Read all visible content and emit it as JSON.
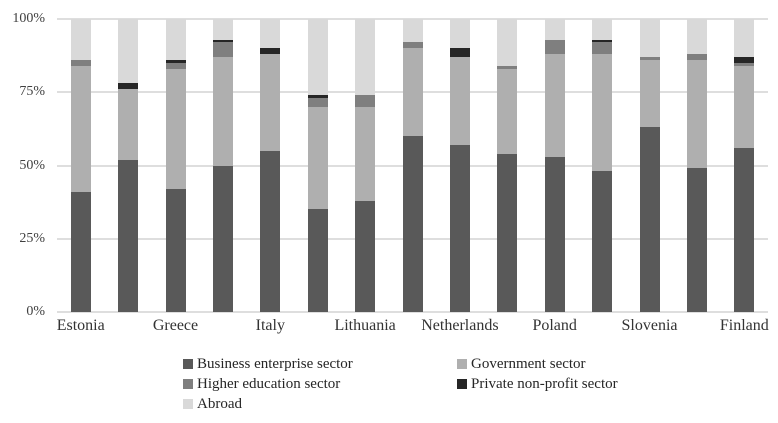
{
  "chart_data": {
    "type": "bar",
    "variant": "stacked-100-percent",
    "title": "",
    "xlabel": "",
    "ylabel": "",
    "grid": true,
    "legend_position": "bottom",
    "y_axis": {
      "min": 0,
      "max": 100,
      "tick_values": [
        0,
        25,
        50,
        75,
        100
      ],
      "tick_labels": [
        "0%",
        "25%",
        "50%",
        "75%",
        "100%"
      ]
    },
    "categories": [
      "Estonia",
      "",
      "Greece",
      "",
      "Italy",
      "",
      "Lithuania",
      "",
      "Netherlands",
      "",
      "Poland",
      "",
      "Slovenia",
      "",
      "Finland"
    ],
    "series": [
      {
        "name": "Business enterprise sector",
        "color": "#595959",
        "values": [
          41,
          52,
          42,
          50,
          55,
          35,
          38,
          60,
          57,
          54,
          53,
          48,
          63,
          49,
          56
        ]
      },
      {
        "name": "Government sector",
        "color": "#afafaf",
        "values": [
          43,
          24,
          41,
          37,
          33,
          35,
          32,
          30,
          30,
          29,
          35,
          40,
          23,
          37,
          28
        ]
      },
      {
        "name": "Higher education sector",
        "color": "#7f7f7f",
        "values": [
          2,
          0,
          2,
          5,
          0,
          3,
          4,
          2,
          0,
          1,
          5,
          4,
          1,
          2,
          1
        ]
      },
      {
        "name": "Private non-profit sector",
        "color": "#262626",
        "values": [
          0,
          2,
          1,
          1,
          2,
          1,
          0,
          0,
          3,
          0,
          0,
          1,
          0,
          0,
          2
        ]
      },
      {
        "name": "Abroad",
        "color": "#d9d9d9",
        "values": [
          14,
          22,
          14,
          7,
          10,
          26,
          26,
          8,
          10,
          16,
          7,
          7,
          13,
          12,
          13
        ]
      }
    ],
    "legend_columns": [
      [
        0,
        2,
        4
      ],
      [
        1,
        3
      ]
    ],
    "colors": {
      "gridline": "#dedede",
      "axis_text": "#404040",
      "category_text": "#333333",
      "legend_text": "#262626",
      "background": "#ffffff"
    }
  }
}
